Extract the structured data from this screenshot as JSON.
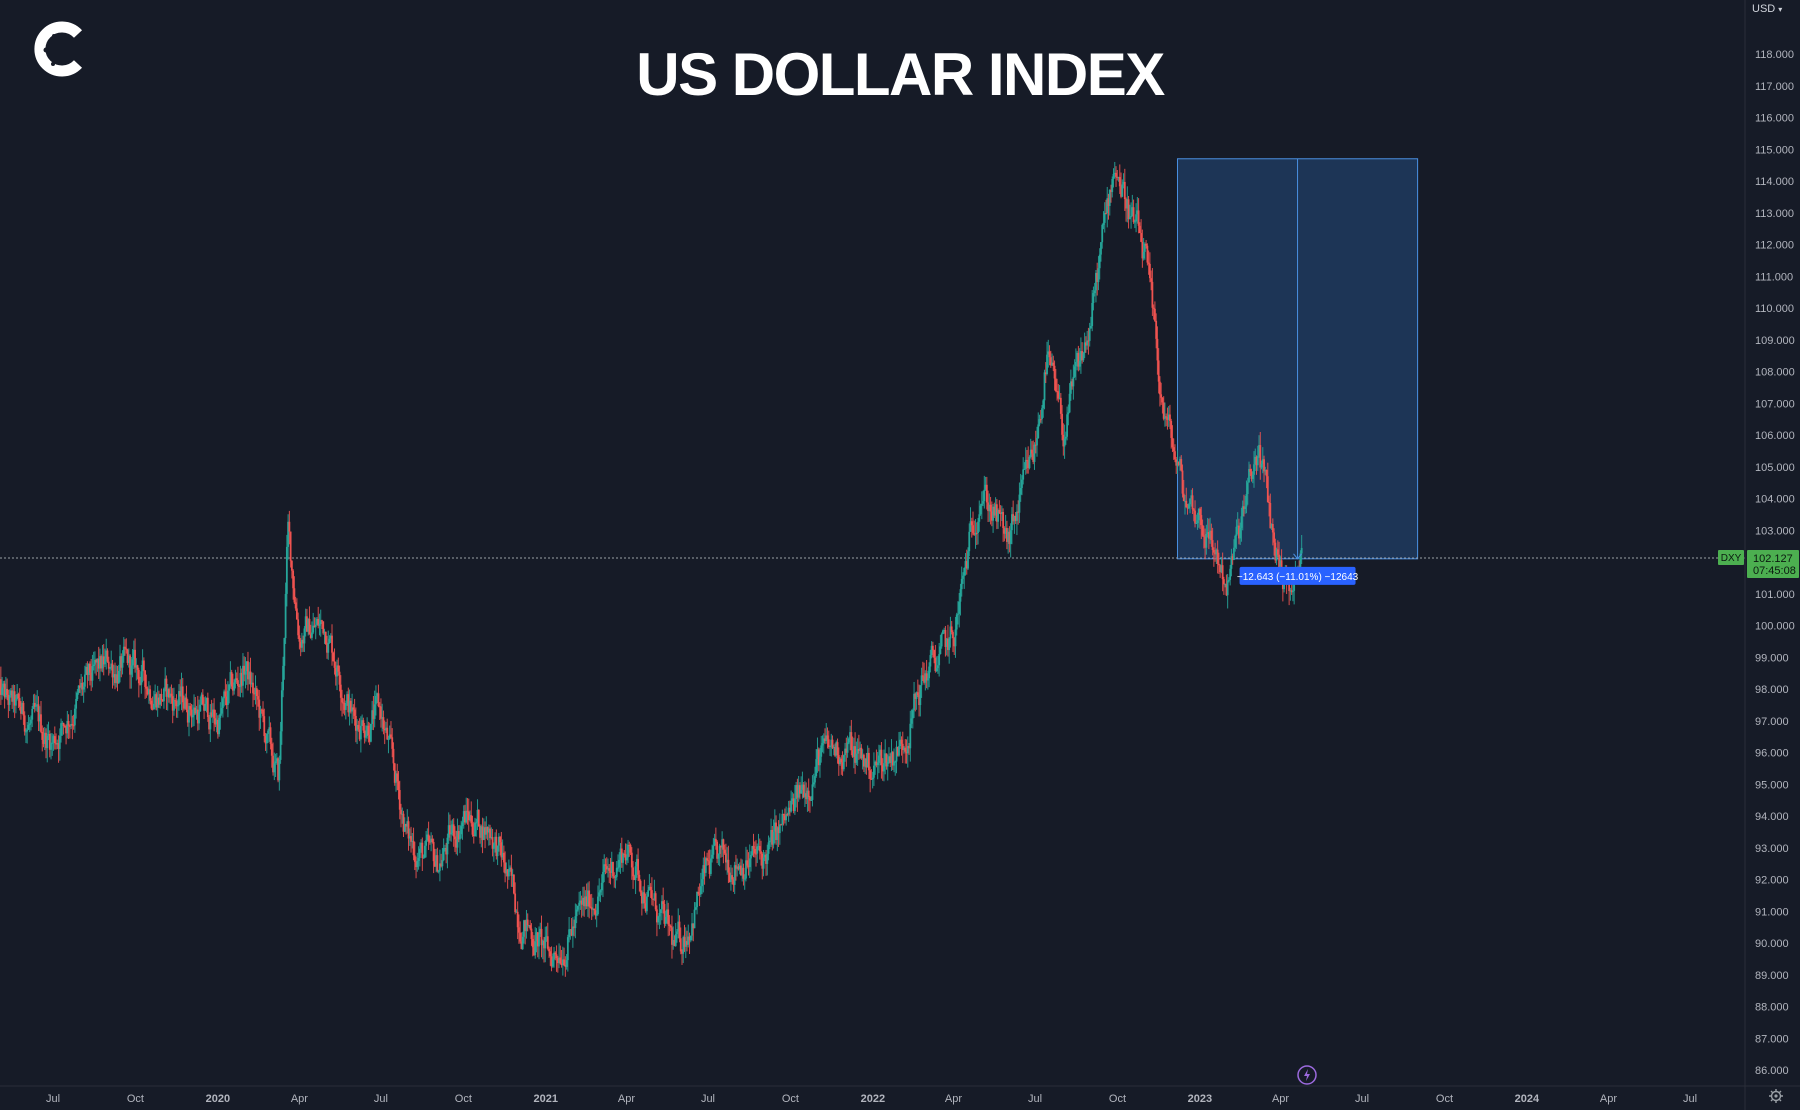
{
  "header": {
    "title": "US DOLLAR INDEX",
    "currency_selector": "USD"
  },
  "icons": {
    "logo": "brand-c-logo-icon",
    "settings": "gear-icon",
    "event": "lightning-icon"
  },
  "colors": {
    "background": "#161b27",
    "up": "#26a69a",
    "down": "#ef5350",
    "measure_fill": "#1e3a5f",
    "measure_line": "#4a90e2",
    "price_label_bg": "#4caf50",
    "measure_label_bg": "#2962ff"
  },
  "chart_data": {
    "type": "candlestick",
    "title": "US DOLLAR INDEX",
    "symbol": "DXY",
    "currency": "USD",
    "x_range": [
      "2019-05",
      "2024-08"
    ],
    "ylim": [
      85.5,
      119.0
    ],
    "y_ticks": [
      "86.000",
      "87.000",
      "88.000",
      "89.000",
      "90.000",
      "91.000",
      "92.000",
      "93.000",
      "94.000",
      "95.000",
      "96.000",
      "97.000",
      "98.000",
      "99.000",
      "100.000",
      "101.000",
      "102.000",
      "103.000",
      "104.000",
      "105.000",
      "106.000",
      "107.000",
      "108.000",
      "109.000",
      "110.000",
      "111.000",
      "112.000",
      "113.000",
      "114.000",
      "115.000",
      "116.000",
      "117.000",
      "118.000"
    ],
    "x_ticks": [
      {
        "label": "Jul",
        "date": "2019-07-01"
      },
      {
        "label": "Oct",
        "date": "2019-10-01"
      },
      {
        "label": "2020",
        "date": "2020-01-01"
      },
      {
        "label": "Apr",
        "date": "2020-04-01"
      },
      {
        "label": "Jul",
        "date": "2020-07-01"
      },
      {
        "label": "Oct",
        "date": "2020-10-01"
      },
      {
        "label": "2021",
        "date": "2021-01-01"
      },
      {
        "label": "Apr",
        "date": "2021-04-01"
      },
      {
        "label": "Jul",
        "date": "2021-07-01"
      },
      {
        "label": "Oct",
        "date": "2021-10-01"
      },
      {
        "label": "2022",
        "date": "2022-01-01"
      },
      {
        "label": "Apr",
        "date": "2022-04-01"
      },
      {
        "label": "Jul",
        "date": "2022-07-01"
      },
      {
        "label": "Oct",
        "date": "2022-10-01"
      },
      {
        "label": "2023",
        "date": "2023-01-01"
      },
      {
        "label": "Apr",
        "date": "2023-04-01"
      },
      {
        "label": "Jul",
        "date": "2023-07-01"
      },
      {
        "label": "Oct",
        "date": "2023-10-01"
      },
      {
        "label": "2024",
        "date": "2024-01-01"
      },
      {
        "label": "Apr",
        "date": "2024-04-01"
      },
      {
        "label": "Jul",
        "date": "2024-07-01"
      }
    ],
    "series": [
      {
        "points": [
          {
            "date": "2019-05-01",
            "value": 97.8
          },
          {
            "date": "2019-06-01",
            "value": 97.0
          },
          {
            "date": "2019-07-01",
            "value": 96.4
          },
          {
            "date": "2019-08-01",
            "value": 97.8
          },
          {
            "date": "2019-09-01",
            "value": 98.8
          },
          {
            "date": "2019-10-01",
            "value": 98.5
          },
          {
            "date": "2019-11-01",
            "value": 97.8
          },
          {
            "date": "2019-12-01",
            "value": 97.5
          },
          {
            "date": "2020-01-01",
            "value": 97.0
          },
          {
            "date": "2020-02-01",
            "value": 98.7
          },
          {
            "date": "2020-03-09",
            "value": 95.0
          },
          {
            "date": "2020-03-19",
            "value": 102.9
          },
          {
            "date": "2020-04-01",
            "value": 99.8
          },
          {
            "date": "2020-05-01",
            "value": 100.0
          },
          {
            "date": "2020-06-01",
            "value": 97.0
          },
          {
            "date": "2020-07-01",
            "value": 97.2
          },
          {
            "date": "2020-08-01",
            "value": 93.2
          },
          {
            "date": "2020-09-01",
            "value": 92.4
          },
          {
            "date": "2020-10-01",
            "value": 94.0
          },
          {
            "date": "2020-11-01",
            "value": 93.6
          },
          {
            "date": "2020-12-01",
            "value": 91.0
          },
          {
            "date": "2021-01-06",
            "value": 89.5
          },
          {
            "date": "2021-02-01",
            "value": 90.5
          },
          {
            "date": "2021-03-31",
            "value": 93.0
          },
          {
            "date": "2021-05-25",
            "value": 89.8
          },
          {
            "date": "2021-06-01",
            "value": 90.0
          },
          {
            "date": "2021-07-01",
            "value": 92.3
          },
          {
            "date": "2021-08-01",
            "value": 92.7
          },
          {
            "date": "2021-09-01",
            "value": 92.6
          },
          {
            "date": "2021-10-01",
            "value": 94.0
          },
          {
            "date": "2021-11-01",
            "value": 95.8
          },
          {
            "date": "2021-12-01",
            "value": 96.2
          },
          {
            "date": "2022-01-01",
            "value": 95.5
          },
          {
            "date": "2022-02-01",
            "value": 96.2
          },
          {
            "date": "2022-03-01",
            "value": 98.5
          },
          {
            "date": "2022-04-01",
            "value": 99.5
          },
          {
            "date": "2022-05-01",
            "value": 104.5
          },
          {
            "date": "2022-06-01",
            "value": 102.5
          },
          {
            "date": "2022-07-01",
            "value": 105.5
          },
          {
            "date": "2022-07-14",
            "value": 108.5
          },
          {
            "date": "2022-08-01",
            "value": 106.0
          },
          {
            "date": "2022-09-01",
            "value": 109.5
          },
          {
            "date": "2022-09-28",
            "value": 114.7
          },
          {
            "date": "2022-10-15",
            "value": 113.0
          },
          {
            "date": "2022-11-01",
            "value": 111.5
          },
          {
            "date": "2022-11-20",
            "value": 107.0
          },
          {
            "date": "2022-12-15",
            "value": 104.0
          },
          {
            "date": "2023-01-01",
            "value": 103.5
          },
          {
            "date": "2023-02-01",
            "value": 101.3
          },
          {
            "date": "2023-03-08",
            "value": 105.6
          },
          {
            "date": "2023-03-25",
            "value": 102.5
          },
          {
            "date": "2023-04-14",
            "value": 101.0
          },
          {
            "date": "2023-04-25",
            "value": 102.1
          }
        ]
      }
    ],
    "current_price": {
      "symbol_label": "DXY",
      "value": 102.127,
      "value_label": "102.127",
      "countdown": "07:45:08"
    },
    "measure_tool": {
      "start_date": "2022-12-07",
      "end_date": "2023-09-01",
      "high": 114.7,
      "low": 102.1,
      "label": "−12.643 (−11.01%) −12643"
    },
    "grid": false,
    "legend": "none"
  }
}
